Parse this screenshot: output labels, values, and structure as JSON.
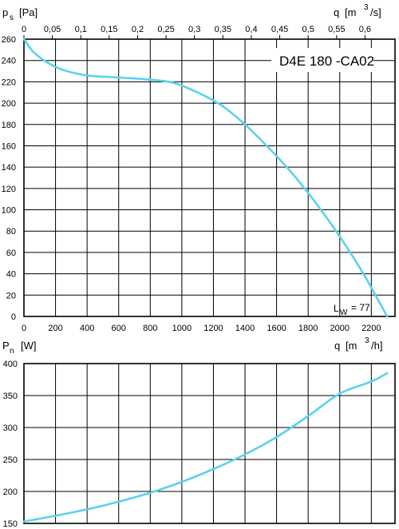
{
  "chart_data": [
    {
      "type": "line",
      "title": "D4E 180 -CA02",
      "ylabel": {
        "symbol": "p",
        "subscript": "s",
        "unit": "[Pa]"
      },
      "xlabel_top": {
        "symbol": "q",
        "unit_pre": "[m",
        "unit_sup": "3",
        "unit_post": "/s]"
      },
      "xlim": [
        0,
        2350
      ],
      "ylim": [
        0,
        260
      ],
      "grid": true,
      "x_ticks": [
        "0",
        "200",
        "400",
        "600",
        "800",
        "1000",
        "1200",
        "1400",
        "1600",
        "1800",
        "2000",
        "2200"
      ],
      "x_tick_values": [
        0,
        200,
        400,
        600,
        800,
        1000,
        1200,
        1400,
        1600,
        1800,
        2000,
        2200
      ],
      "y_ticks": [
        "0",
        "20",
        "40",
        "60",
        "80",
        "100",
        "120",
        "140",
        "160",
        "180",
        "200",
        "220",
        "240",
        "260"
      ],
      "y_tick_values": [
        0,
        20,
        40,
        60,
        80,
        100,
        120,
        140,
        160,
        180,
        200,
        220,
        240,
        260
      ],
      "top_ticks": [
        "0",
        "0,05",
        "0,1",
        "0,15",
        "0,2",
        "0,25",
        "0,3",
        "0,35",
        "0,4",
        "0,45",
        "0,5",
        "0,55",
        "0,6"
      ],
      "top_tick_values": [
        0,
        0.05,
        0.1,
        0.15,
        0.2,
        0.25,
        0.3,
        0.35,
        0.4,
        0.45,
        0.5,
        0.55,
        0.6
      ],
      "annotation": {
        "symbol": "L",
        "subscript": "W",
        "text": "= 77"
      },
      "series": [
        {
          "x": [
            0,
            60,
            150,
            250,
            400,
            600,
            800,
            950,
            1100,
            1250,
            1400,
            1550,
            1700,
            1850,
            2000,
            2150,
            2300
          ],
          "y": [
            260,
            248,
            238,
            231,
            226,
            224,
            222,
            219,
            210,
            198,
            180,
            158,
            134,
            106,
            75,
            40,
            0
          ]
        }
      ]
    },
    {
      "type": "line",
      "ylabel": {
        "symbol": "P",
        "subscript": "n",
        "unit": "[W]"
      },
      "xlabel": {
        "symbol": "q",
        "unit_pre": "[m",
        "unit_sup": "3",
        "unit_post": "/h]"
      },
      "xlim": [
        0,
        2350
      ],
      "ylim": [
        150,
        400
      ],
      "grid": true,
      "y_ticks": [
        "150",
        "200",
        "250",
        "300",
        "350",
        "400"
      ],
      "y_tick_values": [
        150,
        200,
        250,
        300,
        350,
        400
      ],
      "series": [
        {
          "x": [
            0,
            200,
            400,
            600,
            800,
            1000,
            1200,
            1400,
            1600,
            1800,
            2000,
            2200,
            2300
          ],
          "y": [
            153,
            162,
            172,
            184,
            198,
            215,
            235,
            258,
            285,
            318,
            353,
            372,
            385
          ]
        }
      ]
    }
  ],
  "colors": {
    "curve": "#5ad2ee",
    "grid": "#000000"
  }
}
